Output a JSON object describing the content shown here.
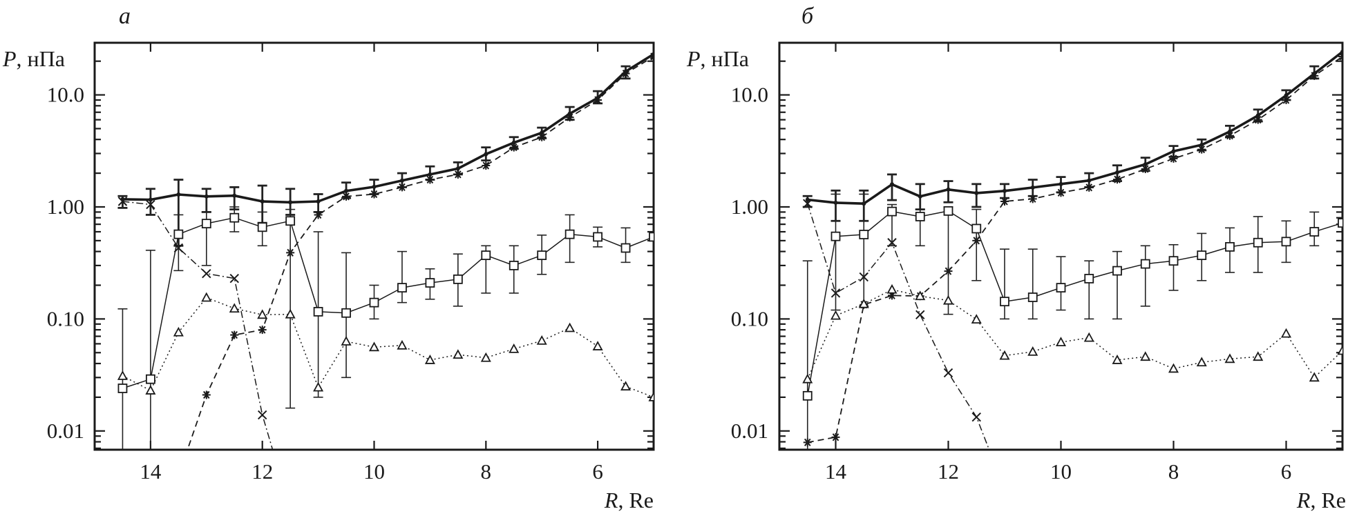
{
  "chart_data": [
    {
      "type": "line",
      "panel_label": "а",
      "ylabel": {
        "var": "P",
        "unit": ", нПа"
      },
      "xlabel": {
        "var": "R",
        "unit": ", Re"
      },
      "y_scale": "log",
      "ylim": [
        0.0068,
        29.2
      ],
      "xlim": [
        15,
        5
      ],
      "x_reversed": true,
      "yticks": [
        10,
        1,
        0.1,
        0.01
      ],
      "ytick_labels": [
        "10.0",
        "1.00",
        "0.10",
        "0.01"
      ],
      "xticks": [
        14,
        12,
        10,
        8,
        6
      ],
      "xtick_labels": [
        "14",
        "12",
        "10",
        "8",
        "6"
      ],
      "grid": false,
      "x": [
        14.5,
        14,
        13.5,
        13,
        12.5,
        12,
        11.5,
        11,
        10.5,
        10,
        9.5,
        9,
        8.5,
        8,
        7.5,
        7,
        6.5,
        6,
        5.5,
        5
      ],
      "series": [
        {
          "style": "thick-solid",
          "marker": "none",
          "values": [
            1.17,
            1.16,
            1.29,
            1.24,
            1.26,
            1.12,
            1.1,
            1.12,
            1.39,
            1.51,
            1.72,
            1.95,
            2.2,
            2.96,
            3.75,
            4.6,
            6.8,
            9.4,
            16.2,
            23.1
          ],
          "yerr_low": [
            0.98,
            0.85,
            0.45,
            0.9,
            0.95,
            0.72,
            0.85,
            0.9,
            1.2,
            1.3,
            1.5,
            1.75,
            1.95,
            2.6,
            3.3,
            4.1,
            6.0,
            8.4,
            14,
            null
          ],
          "yerr_high": [
            1.25,
            1.45,
            1.75,
            1.45,
            1.5,
            1.55,
            1.45,
            1.3,
            1.65,
            1.75,
            2.0,
            2.3,
            2.5,
            3.4,
            4.2,
            5.1,
            7.8,
            10.8,
            18,
            null
          ]
        },
        {
          "style": "dashed",
          "marker": "asterisk",
          "values": [
            null,
            null,
            0.004,
            0.021,
            0.072,
            0.08,
            0.39,
            0.85,
            1.24,
            1.3,
            1.5,
            1.75,
            1.95,
            2.34,
            3.4,
            4.2,
            6.3,
            9.0,
            15.5,
            22
          ]
        },
        {
          "style": "dash-dot",
          "marker": "cross",
          "values": [
            1.12,
            1.05,
            0.43,
            0.254,
            0.23,
            0.0139,
            0.002,
            null,
            null,
            null,
            null,
            null,
            null,
            null,
            null,
            null,
            null,
            null,
            null,
            null
          ]
        },
        {
          "style": "thin-solid",
          "marker": "square",
          "values": [
            0.024,
            0.029,
            0.57,
            0.71,
            0.8,
            0.66,
            0.75,
            0.116,
            0.113,
            0.14,
            0.19,
            0.21,
            0.226,
            0.37,
            0.3,
            0.37,
            0.57,
            0.54,
            0.43,
            0.54
          ],
          "yerr_low": [
            null,
            null,
            0.27,
            0.3,
            0.6,
            0.45,
            0.016,
            0.02,
            0.03,
            0.1,
            0.14,
            0.15,
            0.13,
            0.17,
            0.17,
            0.25,
            0.32,
            0.44,
            0.32,
            null
          ],
          "yerr_high": [
            0.123,
            0.41,
            0.85,
            0.9,
            1.0,
            0.9,
            0.95,
            0.6,
            0.39,
            0.2,
            0.4,
            0.28,
            0.38,
            0.45,
            0.45,
            0.56,
            0.85,
            0.66,
            0.65,
            null
          ]
        },
        {
          "style": "dotted",
          "marker": "triangle",
          "values": [
            0.031,
            0.023,
            0.076,
            0.155,
            0.124,
            0.109,
            0.11,
            0.0245,
            0.063,
            0.056,
            0.058,
            0.043,
            0.048,
            0.045,
            0.054,
            0.064,
            0.083,
            0.057,
            0.025,
            0.02
          ]
        }
      ]
    },
    {
      "type": "line",
      "panel_label": "б",
      "ylabel": {
        "var": "P",
        "unit": ", нПа"
      },
      "xlabel": {
        "var": "R",
        "unit": ", Re"
      },
      "y_scale": "log",
      "ylim": [
        0.0068,
        29.2
      ],
      "xlim": [
        15,
        5
      ],
      "x_reversed": true,
      "yticks": [
        10,
        1,
        0.1,
        0.01
      ],
      "ytick_labels": [
        "10.0",
        "1.00",
        "0.10",
        "0.01"
      ],
      "xticks": [
        14,
        12,
        10,
        8,
        6
      ],
      "xtick_labels": [
        "14",
        "12",
        "10",
        "8",
        "6"
      ],
      "grid": false,
      "x": [
        14.5,
        14,
        13.5,
        13,
        12.5,
        12,
        11.5,
        11,
        10.5,
        10,
        9.5,
        9,
        8.5,
        8,
        7.5,
        7,
        6.5,
        6,
        5.5,
        5
      ],
      "series": [
        {
          "style": "thick-solid",
          "marker": "none",
          "values": [
            1.16,
            1.09,
            1.07,
            1.59,
            1.24,
            1.43,
            1.33,
            1.39,
            1.49,
            1.6,
            1.72,
            2.03,
            2.4,
            3.14,
            3.58,
            4.71,
            6.55,
            9.9,
            15.5,
            24.3
          ],
          "yerr_low": [
            1.0,
            0.75,
            0.75,
            1.15,
            0.95,
            1.1,
            1.0,
            1.2,
            1.25,
            1.35,
            1.5,
            1.7,
            2.1,
            2.8,
            3.2,
            4.2,
            5.8,
            9,
            14,
            null
          ],
          "yerr_high": [
            1.25,
            1.4,
            1.4,
            1.95,
            1.6,
            1.7,
            1.6,
            1.6,
            1.75,
            1.85,
            2.0,
            2.35,
            2.75,
            3.5,
            4.0,
            5.3,
            7.4,
            11,
            18,
            null
          ]
        },
        {
          "style": "dashed",
          "marker": "asterisk",
          "values": [
            0.0079,
            0.0088,
            0.134,
            0.162,
            0.16,
            0.267,
            0.5,
            1.12,
            1.18,
            1.34,
            1.49,
            1.76,
            2.18,
            2.7,
            3.26,
            4.32,
            6.0,
            9.0,
            14.8,
            22
          ]
        },
        {
          "style": "dash-dot",
          "marker": "cross",
          "values": [
            1.07,
            0.17,
            0.237,
            0.48,
            0.109,
            0.033,
            0.0133,
            0.003,
            null,
            null,
            null,
            null,
            null,
            null,
            null,
            null,
            null,
            null,
            null,
            null
          ]
        },
        {
          "style": "thin-solid",
          "marker": "square",
          "values": [
            0.0206,
            0.546,
            0.567,
            0.91,
            0.82,
            0.92,
            0.64,
            0.143,
            0.156,
            0.19,
            0.229,
            0.269,
            0.31,
            0.33,
            0.37,
            0.44,
            0.48,
            0.49,
            0.6,
            0.72
          ],
          "yerr_low": [
            null,
            0.12,
            0.13,
            0.45,
            0.45,
            0.11,
            0.22,
            0.1,
            0.1,
            0.12,
            0.1,
            0.1,
            0.13,
            0.18,
            0.22,
            0.26,
            0.26,
            0.32,
            0.45,
            null
          ],
          "yerr_high": [
            0.33,
            1.3,
            1.3,
            1.05,
            0.95,
            1.0,
            0.95,
            0.42,
            0.42,
            0.36,
            0.33,
            0.4,
            0.45,
            0.46,
            0.58,
            0.65,
            0.82,
            0.75,
            0.9,
            null
          ]
        },
        {
          "style": "dotted",
          "marker": "triangle",
          "values": [
            0.029,
            0.107,
            0.136,
            0.183,
            0.16,
            0.146,
            0.099,
            0.047,
            0.051,
            0.062,
            0.068,
            0.043,
            0.046,
            0.036,
            0.041,
            0.044,
            0.046,
            0.074,
            0.03,
            0.052
          ]
        }
      ]
    }
  ]
}
